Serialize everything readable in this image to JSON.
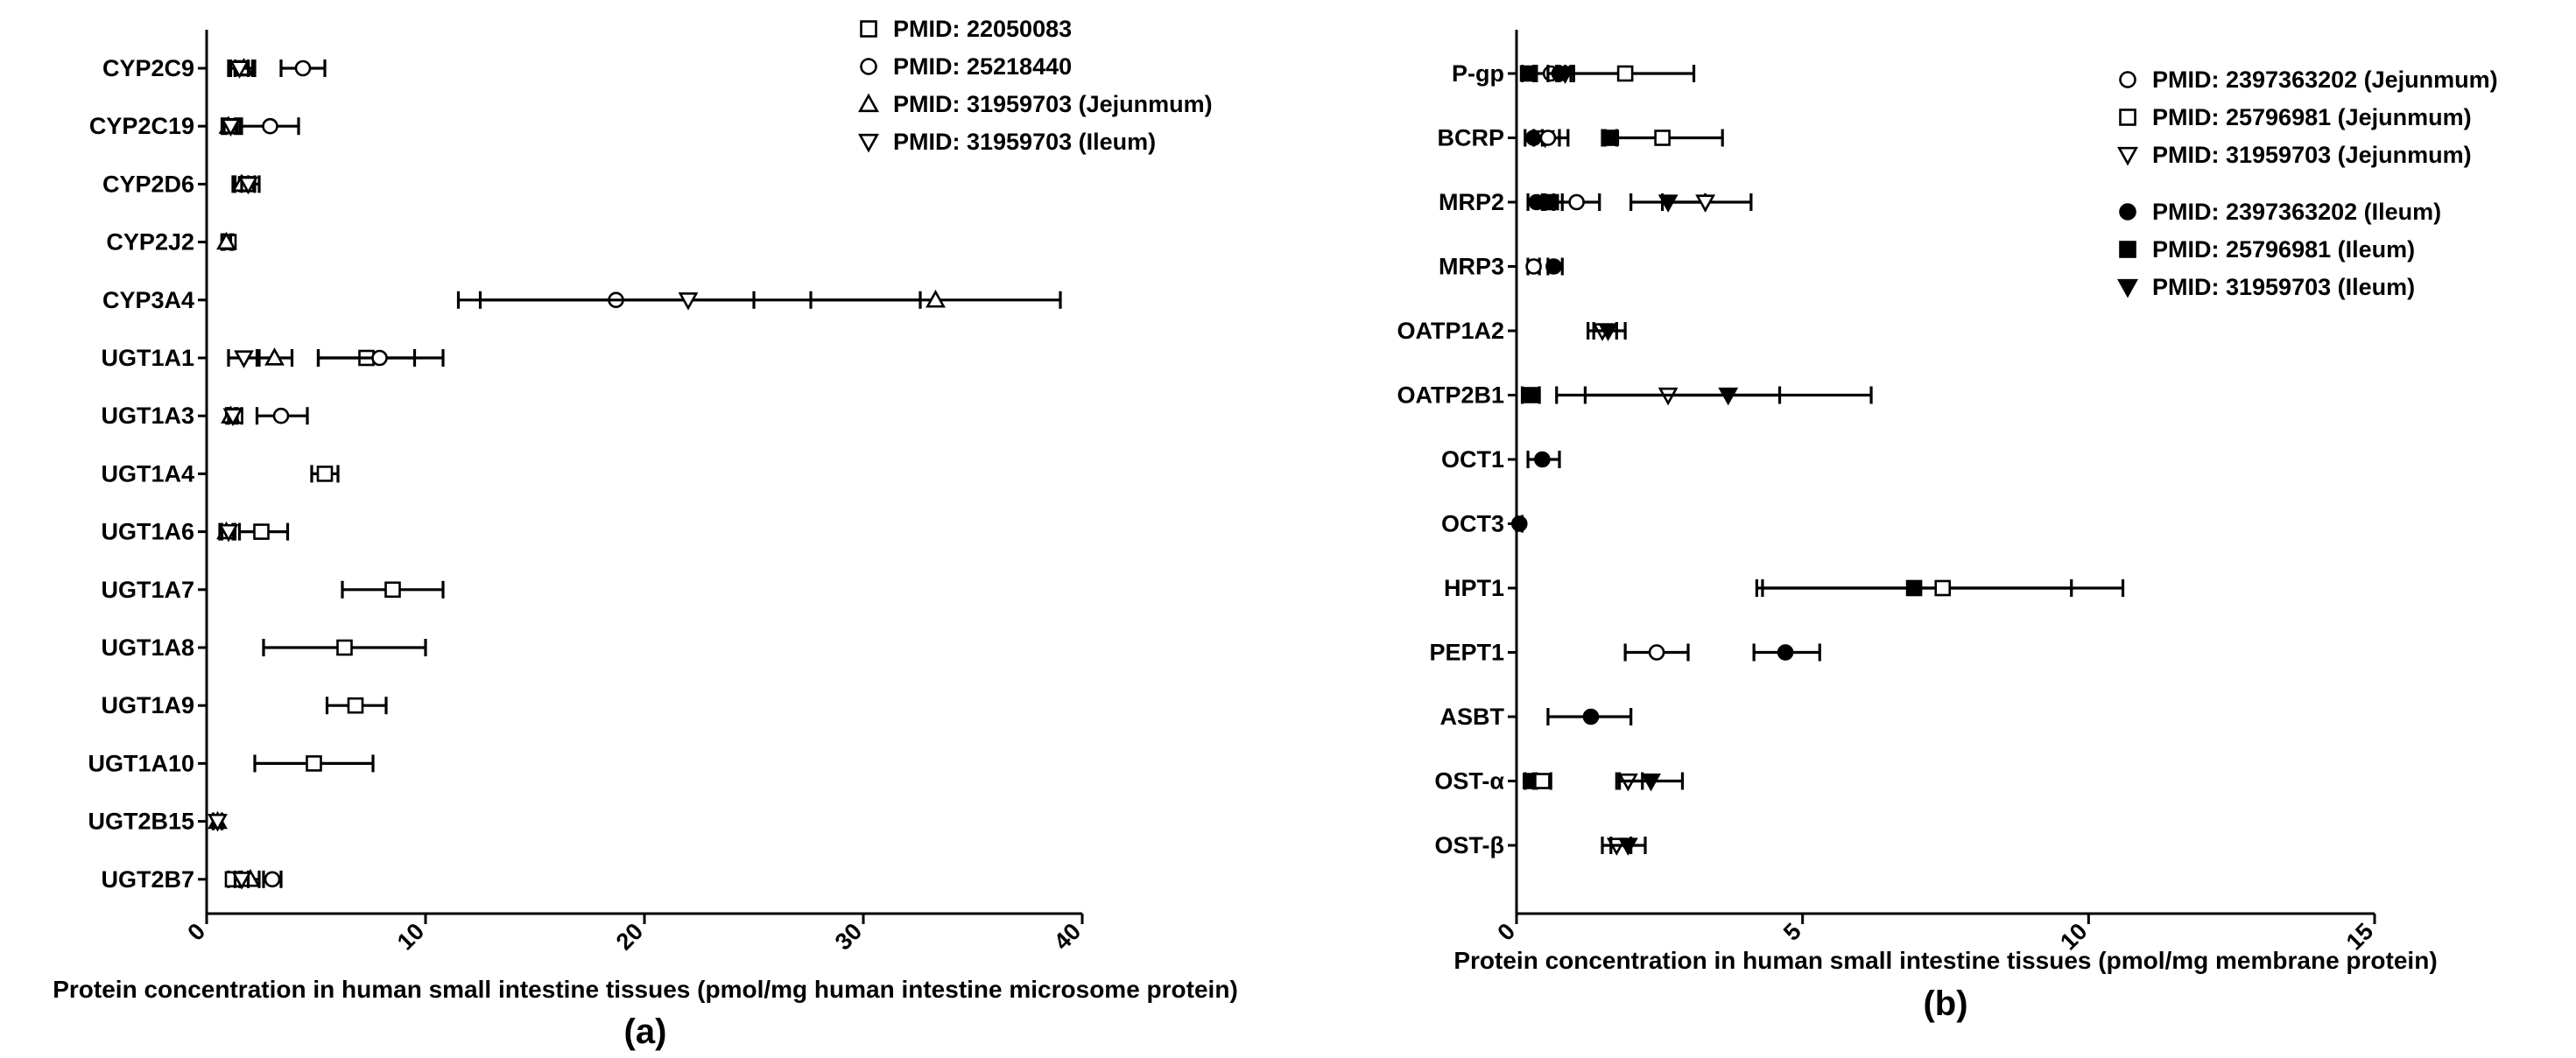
{
  "chart_data": [
    {
      "type": "scatter",
      "panel_label": "(a)",
      "xlabel": "Protein concentration in human small intestine tissues (pmol/mg human intestine microsome protein)",
      "xlim": [
        0,
        40
      ],
      "xticks": [
        0,
        10,
        20,
        30,
        40
      ],
      "xtick_labels": [
        "0",
        "10",
        "20",
        "30",
        "40"
      ],
      "categories": [
        "CYP2C9",
        "CYP2C19",
        "CYP2D6",
        "CYP2J2",
        "CYP3A4",
        "UGT1A1",
        "UGT1A3",
        "UGT1A4",
        "UGT1A6",
        "UGT1A7",
        "UGT1A8",
        "UGT1A9",
        "UGT1A10",
        "UGT2B15",
        "UGT2B7"
      ],
      "legend": [
        {
          "name": "PMID: 22050083",
          "marker": "square-open"
        },
        {
          "name": "PMID: 25218440",
          "marker": "circle-open"
        },
        {
          "name": "PMID: 31959703 (Jejunmum)",
          "marker": "triangle-up-open"
        },
        {
          "name": "PMID: 31959703 (Ileum)",
          "marker": "triangle-down-open"
        }
      ],
      "points": [
        {
          "category": "CYP2C9",
          "series": "PMID: 22050083",
          "marker": "square-open",
          "value": 1.6,
          "low": 1.0,
          "high": 2.2
        },
        {
          "category": "CYP2C9",
          "series": "PMID: 25218440",
          "marker": "circle-open",
          "value": 4.4,
          "low": 3.4,
          "high": 5.4
        },
        {
          "category": "CYP2C9",
          "series": "PMID: 31959703 (Jejunmum)",
          "marker": "triangle-up-open",
          "value": 1.7,
          "low": 1.3,
          "high": 2.1
        },
        {
          "category": "CYP2C9",
          "series": "PMID: 31959703 (Ileum)",
          "marker": "triangle-down-open",
          "value": 1.5,
          "low": 1.1,
          "high": 1.9
        },
        {
          "category": "CYP2C19",
          "series": "PMID: 22050083",
          "marker": "square-open",
          "value": 1.2,
          "low": 0.9,
          "high": 1.5
        },
        {
          "category": "CYP2C19",
          "series": "PMID: 25218440",
          "marker": "circle-open",
          "value": 2.9,
          "low": 1.6,
          "high": 4.2
        },
        {
          "category": "CYP2C19",
          "series": "PMID: 31959703 (Jejunmum)",
          "marker": "triangle-up-open",
          "value": 1.0,
          "low": 0.7,
          "high": 1.3
        },
        {
          "category": "CYP2C19",
          "series": "PMID: 31959703 (Ileum)",
          "marker": "triangle-down-open",
          "value": 1.1,
          "low": 0.8,
          "high": 1.4
        },
        {
          "category": "CYP2D6",
          "series": "PMID: 22050083",
          "marker": "square-open",
          "value": 1.8,
          "low": 1.2,
          "high": 2.4
        },
        {
          "category": "CYP2D6",
          "series": "PMID: 31959703 (Jejunmum)",
          "marker": "triangle-up-open",
          "value": 1.6,
          "low": 1.3,
          "high": 1.9
        },
        {
          "category": "CYP2D6",
          "series": "PMID: 31959703 (Ileum)",
          "marker": "triangle-down-open",
          "value": 1.9,
          "low": 1.6,
          "high": 2.2
        },
        {
          "category": "CYP2J2",
          "series": "PMID: 22050083",
          "marker": "square-open",
          "value": 1.0,
          "low": 0.8,
          "high": 1.2
        },
        {
          "category": "CYP2J2",
          "series": "PMID: 31959703 (Jejunmum)",
          "marker": "triangle-up-open",
          "value": 0.9,
          "low": 0.7,
          "high": 1.1
        },
        {
          "category": "CYP3A4",
          "series": "PMID: 25218440",
          "marker": "circle-open",
          "value": 18.7,
          "low": 12.5,
          "high": 25.0
        },
        {
          "category": "CYP3A4",
          "series": "PMID: 31959703 (Ileum)",
          "marker": "triangle-down-open",
          "value": 22.0,
          "low": 11.5,
          "high": 32.6
        },
        {
          "category": "CYP3A4",
          "series": "PMID: 31959703 (Jejunmum)",
          "marker": "triangle-up-open",
          "value": 33.3,
          "low": 27.6,
          "high": 39.0
        },
        {
          "category": "UGT1A1",
          "series": "PMID: 22050083",
          "marker": "square-open",
          "value": 7.3,
          "low": 5.1,
          "high": 9.5
        },
        {
          "category": "UGT1A1",
          "series": "PMID: 25218440",
          "marker": "circle-open",
          "value": 7.9,
          "low": 5.1,
          "high": 10.8
        },
        {
          "category": "UGT1A1",
          "series": "PMID: 31959703 (Jejunmum)",
          "marker": "triangle-up-open",
          "value": 3.1,
          "low": 2.3,
          "high": 3.9
        },
        {
          "category": "UGT1A1",
          "series": "PMID: 31959703 (Ileum)",
          "marker": "triangle-down-open",
          "value": 1.7,
          "low": 1.0,
          "high": 2.4
        },
        {
          "category": "UGT1A3",
          "series": "PMID: 22050083",
          "marker": "square-open",
          "value": 1.3,
          "low": 1.0,
          "high": 1.6
        },
        {
          "category": "UGT1A3",
          "series": "PMID: 25218440",
          "marker": "circle-open",
          "value": 3.4,
          "low": 2.3,
          "high": 4.6
        },
        {
          "category": "UGT1A3",
          "series": "PMID: 31959703 (Jejunmum)",
          "marker": "triangle-up-open",
          "value": 1.1,
          "low": 0.9,
          "high": 1.3
        },
        {
          "category": "UGT1A3",
          "series": "PMID: 31959703 (Ileum)",
          "marker": "triangle-down-open",
          "value": 1.2,
          "low": 1.0,
          "high": 1.4
        },
        {
          "category": "UGT1A4",
          "series": "PMID: 22050083",
          "marker": "square-open",
          "value": 5.4,
          "low": 4.8,
          "high": 6.0
        },
        {
          "category": "UGT1A6",
          "series": "PMID: 22050083",
          "marker": "square-open",
          "value": 2.5,
          "low": 1.5,
          "high": 3.7
        },
        {
          "category": "UGT1A6",
          "series": "PMID: 31959703 (Jejunmum)",
          "marker": "triangle-up-open",
          "value": 0.9,
          "low": 0.6,
          "high": 1.2
        },
        {
          "category": "UGT1A6",
          "series": "PMID: 31959703 (Ileum)",
          "marker": "triangle-down-open",
          "value": 1.0,
          "low": 0.7,
          "high": 1.3
        },
        {
          "category": "UGT1A7",
          "series": "PMID: 22050083",
          "marker": "square-open",
          "value": 8.5,
          "low": 6.2,
          "high": 10.8
        },
        {
          "category": "UGT1A8",
          "series": "PMID: 22050083",
          "marker": "square-open",
          "value": 6.3,
          "low": 2.6,
          "high": 10.0
        },
        {
          "category": "UGT1A9",
          "series": "PMID: 22050083",
          "marker": "square-open",
          "value": 6.8,
          "low": 5.5,
          "high": 8.2
        },
        {
          "category": "UGT1A10",
          "series": "PMID: 22050083",
          "marker": "square-open",
          "value": 4.9,
          "low": 2.2,
          "high": 7.6
        },
        {
          "category": "UGT2B15",
          "series": "PMID: 31959703 (Jejunmum)",
          "marker": "triangle-up-open",
          "value": 0.5,
          "low": 0.3,
          "high": 0.7
        },
        {
          "category": "UGT2B15",
          "series": "PMID: 31959703 (Ileum)",
          "marker": "triangle-down-open",
          "value": 0.5,
          "low": 0.3,
          "high": 0.7
        },
        {
          "category": "UGT2B7",
          "series": "PMID: 22050083",
          "marker": "square-open",
          "value": 1.2,
          "low": 1.0,
          "high": 1.5
        },
        {
          "category": "UGT2B7",
          "series": "PMID: 25218440",
          "marker": "circle-open",
          "value": 3.0,
          "low": 2.6,
          "high": 3.4
        },
        {
          "category": "UGT2B7",
          "series": "PMID: 31959703 (Jejunmum)",
          "marker": "triangle-up-open",
          "value": 2.0,
          "low": 1.6,
          "high": 2.4
        },
        {
          "category": "UGT2B7",
          "series": "PMID: 31959703 (Ileum)",
          "marker": "triangle-down-open",
          "value": 1.6,
          "low": 1.3,
          "high": 1.9
        }
      ]
    },
    {
      "type": "scatter",
      "panel_label": "(b)",
      "xlabel": "Protein concentration in human small intestine tissues (pmol/mg membrane protein)",
      "xlim": [
        0,
        15
      ],
      "xticks": [
        0,
        5,
        10,
        15
      ],
      "xtick_labels": [
        "0",
        "5",
        "10",
        "15"
      ],
      "categories": [
        "P-gp",
        "BCRP",
        "MRP2",
        "MRP3",
        "OATP1A2",
        "OATP2B1",
        "OCT1",
        "OCT3",
        "HPT1",
        "PEPT1",
        "ASBT",
        "OST-α",
        "OST-β"
      ],
      "legend": [
        {
          "name": "PMID: 2397363202 (Jejunmum)",
          "marker": "circle-open"
        },
        {
          "name": "PMID: 25796981 (Jejunmum)",
          "marker": "square-open"
        },
        {
          "name": "PMID: 31959703 (Jejunmum)",
          "marker": "triangle-down-open"
        },
        {
          "name": "PMID: 2397363202 (Ileum)",
          "marker": "circle-filled"
        },
        {
          "name": "PMID: 25796981 (Ileum)",
          "marker": "square-filled"
        },
        {
          "name": "PMID: 31959703 (Ileum)",
          "marker": "triangle-down-filled"
        }
      ],
      "points": [
        {
          "category": "P-gp",
          "series": "PMID: 25796981 (Ileum)",
          "marker": "square-filled",
          "value": 0.2,
          "low": 0.1,
          "high": 0.3
        },
        {
          "category": "P-gp",
          "series": "PMID: 2397363202 (Jejunmum)",
          "marker": "circle-open",
          "value": 0.6,
          "low": 0.35,
          "high": 0.85
        },
        {
          "category": "P-gp",
          "series": "PMID: 2397363202 (Ileum)",
          "marker": "circle-filled",
          "value": 0.75,
          "low": 0.55,
          "high": 0.95
        },
        {
          "category": "P-gp",
          "series": "PMID: 31959703 (Ileum)",
          "marker": "triangle-down-filled",
          "value": 0.85,
          "low": 0.7,
          "high": 1.0
        },
        {
          "category": "P-gp",
          "series": "PMID: 25796981 (Jejunmum)",
          "marker": "square-open",
          "value": 1.9,
          "low": 0.75,
          "high": 3.1
        },
        {
          "category": "BCRP",
          "series": "PMID: 2397363202 (Ileum)",
          "marker": "circle-filled",
          "value": 0.3,
          "low": 0.15,
          "high": 0.45
        },
        {
          "category": "BCRP",
          "series": "PMID: 31959703 (Jejunmum)",
          "marker": "triangle-down-open",
          "value": 0.5,
          "low": 0.3,
          "high": 0.75
        },
        {
          "category": "BCRP",
          "series": "PMID: 2397363202 (Jejunmum)",
          "marker": "circle-open",
          "value": 0.55,
          "low": 0.3,
          "high": 0.9
        },
        {
          "category": "BCRP",
          "series": "PMID: 25796981 (Ileum)",
          "marker": "square-filled",
          "value": 1.65,
          "low": 1.55,
          "high": 1.75
        },
        {
          "category": "BCRP",
          "series": "PMID: 25796981 (Jejunmum)",
          "marker": "square-open",
          "value": 2.55,
          "low": 1.5,
          "high": 3.6
        },
        {
          "category": "MRP2",
          "series": "PMID: 2397363202 (Ileum)",
          "marker": "circle-filled",
          "value": 0.35,
          "low": 0.2,
          "high": 0.5
        },
        {
          "category": "MRP2",
          "series": "PMID: 25796981 (Ileum)",
          "marker": "square-filled",
          "value": 0.6,
          "low": 0.45,
          "high": 0.8
        },
        {
          "category": "MRP2",
          "series": "PMID: 2397363202 (Jejunmum)",
          "marker": "circle-open",
          "value": 1.05,
          "low": 0.65,
          "high": 1.45
        },
        {
          "category": "MRP2",
          "series": "PMID: 31959703 (Ileum)",
          "marker": "triangle-down-filled",
          "value": 2.65,
          "low": 2.0,
          "high": 3.3
        },
        {
          "category": "MRP2",
          "series": "PMID: 31959703 (Jejunmum)",
          "marker": "triangle-down-open",
          "value": 3.3,
          "low": 2.55,
          "high": 4.1
        },
        {
          "category": "MRP3",
          "series": "PMID: 2397363202 (Jejunmum)",
          "marker": "circle-open",
          "value": 0.3,
          "low": 0.2,
          "high": 0.4
        },
        {
          "category": "MRP3",
          "series": "PMID: 2397363202 (Ileum)",
          "marker": "circle-filled",
          "value": 0.65,
          "low": 0.55,
          "high": 0.8
        },
        {
          "category": "OATP1A2",
          "series": "PMID: 31959703 (Jejunmum)",
          "marker": "triangle-down-open",
          "value": 1.5,
          "low": 1.25,
          "high": 1.75
        },
        {
          "category": "OATP1A2",
          "series": "PMID: 31959703 (Ileum)",
          "marker": "triangle-down-filled",
          "value": 1.6,
          "low": 1.35,
          "high": 1.9
        },
        {
          "category": "OATP2B1",
          "series": "PMID: 25796981 (Ileum)",
          "marker": "square-filled",
          "value": 0.25,
          "low": 0.1,
          "high": 0.4
        },
        {
          "category": "OATP2B1",
          "series": "PMID: 31959703 (Jejunmum)",
          "marker": "triangle-down-open",
          "value": 2.65,
          "low": 1.2,
          "high": 4.6
        },
        {
          "category": "OATP2B1",
          "series": "PMID: 31959703 (Ileum)",
          "marker": "triangle-down-filled",
          "value": 3.7,
          "low": 0.7,
          "high": 6.2
        },
        {
          "category": "OCT1",
          "series": "PMID: 2397363202 (Ileum)",
          "marker": "circle-filled",
          "value": 0.45,
          "low": 0.2,
          "high": 0.75
        },
        {
          "category": "OCT3",
          "series": "PMID: 2397363202 (Ileum)",
          "marker": "circle-filled",
          "value": 0.05,
          "low": 0.0,
          "high": 0.1
        },
        {
          "category": "HPT1",
          "series": "PMID: 25796981 (Ileum)",
          "marker": "square-filled",
          "value": 6.95,
          "low": 4.2,
          "high": 9.7
        },
        {
          "category": "HPT1",
          "series": "PMID: 25796981 (Jejunmum)",
          "marker": "square-open",
          "value": 7.45,
          "low": 4.3,
          "high": 10.6
        },
        {
          "category": "PEPT1",
          "series": "PMID: 2397363202 (Jejunmum)",
          "marker": "circle-open",
          "value": 2.45,
          "low": 1.9,
          "high": 3.0
        },
        {
          "category": "PEPT1",
          "series": "PMID: 2397363202 (Ileum)",
          "marker": "circle-filled",
          "value": 4.7,
          "low": 4.15,
          "high": 5.3
        },
        {
          "category": "ASBT",
          "series": "PMID: 2397363202 (Ileum)",
          "marker": "circle-filled",
          "value": 1.3,
          "low": 0.55,
          "high": 2.0
        },
        {
          "category": "OST-α",
          "series": "PMID: 25796981 (Ileum)",
          "marker": "square-filled",
          "value": 0.25,
          "low": 0.15,
          "high": 0.35
        },
        {
          "category": "OST-α",
          "series": "PMID: 25796981 (Jejunmum)",
          "marker": "square-open",
          "value": 0.45,
          "low": 0.3,
          "high": 0.6
        },
        {
          "category": "OST-α",
          "series": "PMID: 31959703 (Jejunmum)",
          "marker": "triangle-down-open",
          "value": 1.95,
          "low": 1.75,
          "high": 2.2
        },
        {
          "category": "OST-α",
          "series": "PMID: 31959703 (Ileum)",
          "marker": "triangle-down-filled",
          "value": 2.35,
          "low": 1.8,
          "high": 2.9
        },
        {
          "category": "OST-β",
          "series": "PMID: 31959703 (Jejunmum)",
          "marker": "triangle-down-open",
          "value": 1.75,
          "low": 1.5,
          "high": 2.0
        },
        {
          "category": "OST-β",
          "series": "PMID: 31959703 (Ileum)",
          "marker": "triangle-down-filled",
          "value": 1.95,
          "low": 1.65,
          "high": 2.25
        }
      ]
    }
  ]
}
